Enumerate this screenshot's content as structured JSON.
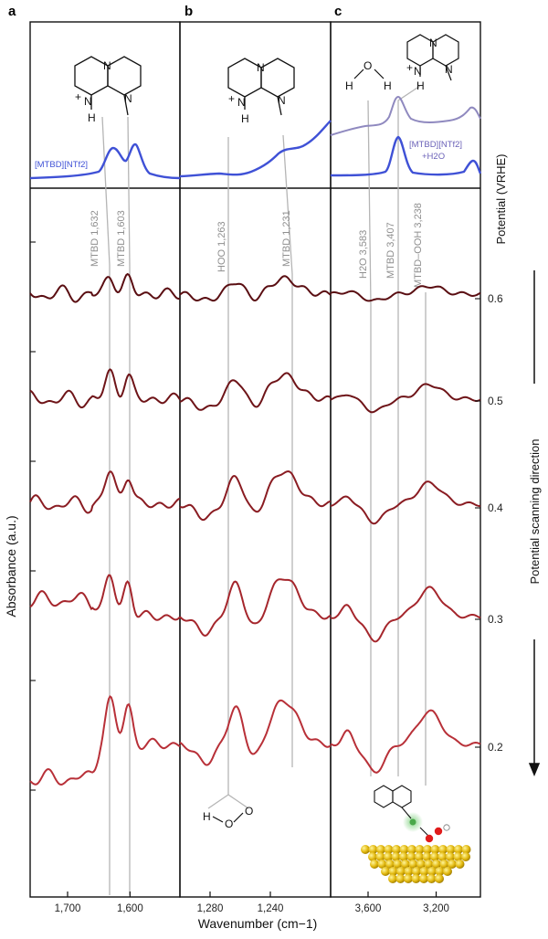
{
  "panels": [
    {
      "letter": "a"
    },
    {
      "letter": "b"
    },
    {
      "letter": "c"
    }
  ],
  "reference": {
    "label_a": "[MTBD][NTf2]",
    "label_c_line1": "[MTBD][NTf2]",
    "label_c_line2": "+H2O",
    "color": "#3f51d6",
    "color_light": "#8f89bf"
  },
  "molecule": {
    "atoms": [
      "N",
      "N",
      "N",
      "H",
      "+"
    ],
    "water": [
      "H",
      "O",
      "H"
    ],
    "hoo": [
      "H",
      "O",
      "O"
    ]
  },
  "chart_data": {
    "type": "line",
    "xlabel": "Wavenumber (cm−1)",
    "ylabel": "Absorbance (a.u.)",
    "potential_axis_title": "Potential (VRHE)",
    "scan_direction_label": "Potential scanning direction",
    "potentials": [
      "0.6",
      "0.5",
      "0.4",
      "0.3",
      "0.2"
    ],
    "panels": [
      {
        "id": "a",
        "xlim": [
          1760,
          1520
        ],
        "xticks": [
          "1,700",
          "1,600"
        ],
        "peaks": [
          {
            "label": "MTBD 1,632",
            "x": 1632
          },
          {
            "label": "MTBD 1,603",
            "x": 1603
          }
        ]
      },
      {
        "id": "b",
        "xlim": [
          1300,
          1200
        ],
        "xticks": [
          "1,280",
          "1,240"
        ],
        "peaks": [
          {
            "label": "HOO 1,263",
            "x": 1263
          },
          {
            "label": "MTBD 1,231",
            "x": 1231
          }
        ]
      },
      {
        "id": "c",
        "xlim": [
          3820,
          2940
        ],
        "xticks": [
          "3,600",
          "3,200"
        ],
        "peaks": [
          {
            "label": "H2O 3,583",
            "x": 3583
          },
          {
            "label": "MTBD 3,407",
            "x": 3407
          },
          {
            "label": "MTBD–OOH 3,238",
            "x": 3238
          }
        ]
      }
    ],
    "series_colors": [
      "#5a0e12",
      "#6e1418",
      "#8a1c22",
      "#a5262c",
      "#b83038"
    ],
    "grid": false
  }
}
